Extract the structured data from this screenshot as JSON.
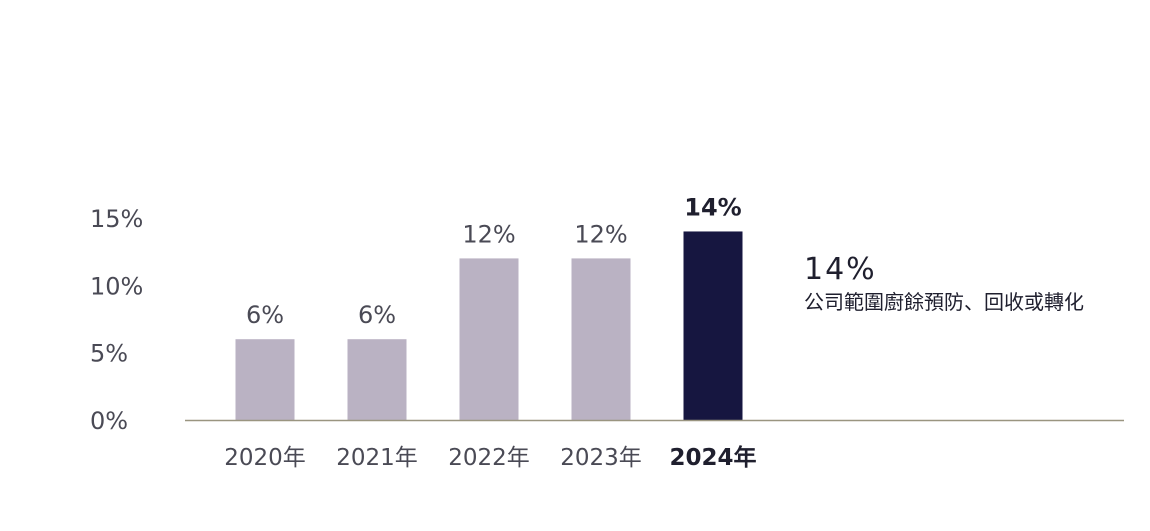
{
  "chart_data": {
    "type": "bar",
    "categories": [
      "2020年",
      "2021年",
      "2022年",
      "2023年",
      "2024年"
    ],
    "values": [
      6,
      6,
      12,
      12,
      14
    ],
    "data_labels": [
      "6%",
      "6%",
      "12%",
      "12%",
      "14%"
    ],
    "y_ticks": [
      "0%",
      "5%",
      "10%",
      "15%"
    ],
    "ylim": [
      0,
      15
    ],
    "grid": false,
    "highlight_index": 4,
    "colors": {
      "bar": "#bab2c3",
      "highlight": "#161640",
      "axis": "#9a9580",
      "text": "#4a4a55",
      "highlight_text": "#1f1f2e"
    }
  },
  "callout": {
    "value": "14%",
    "description": "公司範圍廚餘預防、回收或轉化"
  }
}
